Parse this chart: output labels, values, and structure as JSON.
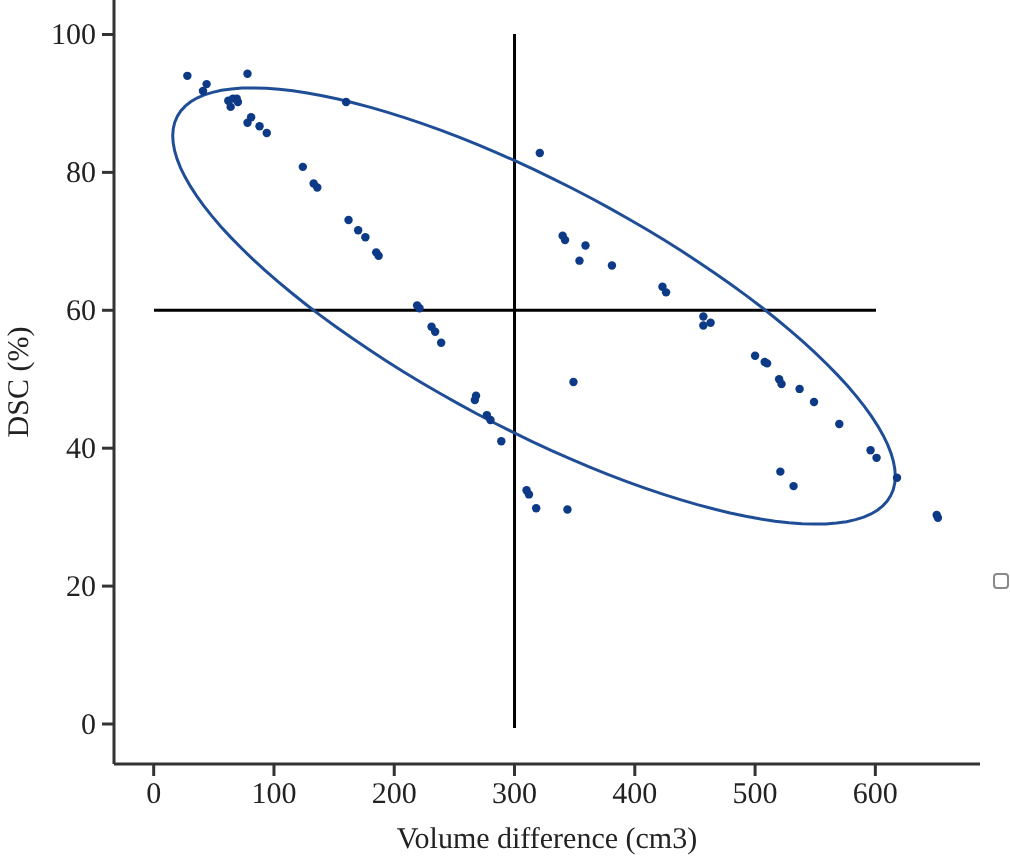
{
  "chart_data": {
    "type": "scatter",
    "xlabel": "Volume difference (cm3)",
    "ylabel": "DSC (%)",
    "xlim": [
      -33,
      687
    ],
    "ylim": [
      -5.8,
      105
    ],
    "xticks": [
      0,
      100,
      200,
      300,
      400,
      500,
      600
    ],
    "yticks": [
      0,
      20,
      40,
      60,
      80,
      100
    ],
    "marker": "circle",
    "grid": false,
    "legend": false,
    "ref_lines": [
      {
        "axis": "x",
        "value": 300,
        "color": "#000000"
      },
      {
        "axis": "y",
        "value": 60,
        "color": "#000000"
      }
    ],
    "series": [
      {
        "color": "#0d3a87",
        "x": [
          28,
          44,
          41,
          78,
          62,
          66,
          70,
          64,
          69,
          81,
          78,
          88,
          94,
          160,
          124,
          133,
          136,
          162,
          170,
          176,
          185,
          187,
          219,
          221,
          231,
          234,
          239,
          268,
          267,
          277,
          280,
          289,
          349,
          310,
          312,
          318,
          344,
          321,
          340,
          342,
          359,
          354,
          381,
          423,
          426,
          457,
          457,
          463,
          500,
          508,
          510,
          520,
          522,
          537,
          549,
          570,
          596,
          601,
          618,
          651,
          652,
          521,
          532
        ],
        "values": [
          94.0,
          92.8,
          91.8,
          94.3,
          90.4,
          90.7,
          90.2,
          89.5,
          90.7,
          88.0,
          87.2,
          86.7,
          85.7,
          90.2,
          80.8,
          78.4,
          77.8,
          73.1,
          71.6,
          70.6,
          68.4,
          67.9,
          60.7,
          60.3,
          57.6,
          56.9,
          55.3,
          47.6,
          47.0,
          44.8,
          44.1,
          41.0,
          49.6,
          33.9,
          33.3,
          31.3,
          31.1,
          82.8,
          70.8,
          70.2,
          69.4,
          67.2,
          66.5,
          63.4,
          62.6,
          59.1,
          57.8,
          58.2,
          53.4,
          52.5,
          52.3,
          50.0,
          49.3,
          48.6,
          46.7,
          43.5,
          39.7,
          38.6,
          35.7,
          30.3,
          29.9,
          36.6,
          34.5
        ]
      }
    ]
  }
}
